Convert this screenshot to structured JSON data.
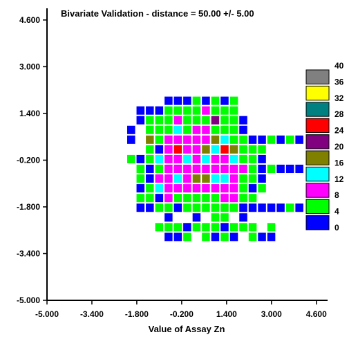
{
  "chart_data": {
    "type": "heatmap",
    "title": "Bivariate Validation - distance = 50.00 +/- 5.00",
    "xlabel": "Value of Assay Zn",
    "ylabel": "",
    "xlim": [
      -5.0,
      5.0
    ],
    "ylim": [
      -5.0,
      5.0
    ],
    "x_ticks": [
      "-5.000",
      "-3.400",
      "-1.800",
      "-0.200",
      "1.400",
      "3.000",
      "4.600"
    ],
    "y_ticks": [
      "4.600",
      "3.000",
      "1.400",
      "-0.200",
      "-1.800",
      "-3.400",
      "-5.000"
    ],
    "grid": false,
    "cell_size": 0.333,
    "x_start": -2.5,
    "y_start": 2.0,
    "legend": {
      "placement": "right",
      "labels": [
        "40",
        "36",
        "32",
        "28",
        "24",
        "20",
        "16",
        "12",
        "8",
        "4",
        "0"
      ],
      "swatches": [
        {
          "bin": "36-40",
          "color": "#808080"
        },
        {
          "bin": "32-36",
          "color": "#ffff00"
        },
        {
          "bin": "28-32",
          "color": "#008080"
        },
        {
          "bin": "24-28",
          "color": "#ff0000"
        },
        {
          "bin": "20-24",
          "color": "#800080"
        },
        {
          "bin": "16-20",
          "color": "#808000"
        },
        {
          "bin": "12-16",
          "color": "#00ffff"
        },
        {
          "bin": "8-12",
          "color": "#ff00ff"
        },
        {
          "bin": "4-8",
          "color": "#00ff00"
        },
        {
          "bin": "0-4",
          "color": "#0000ff"
        }
      ]
    },
    "grid_rows": [
      ".....BBBGBGBG....",
      "..BBBGGGGMGGG....",
      "..BGGGMGGGPGGB...",
      ".B.GGGCGMMGGGB...",
      ".B.OGMMMMMOCGGBBGBGB",
      "...GBMRMMOCROGGG...",
      ".GBGCMMCMCMMCGGB...",
      "..GBGMMMMMMMMMGBGBBB",
      "..GBMMCMOOCCMGGB...",
      "..BGCMMMMMMMMGBG...",
      "..GGBMGGGGGMMGG....",
      "..BBGGBGGGGGGBBBBBGB",
      ".....B..B.GG.B.....",
      "....GGGBGGGBGGG.G..",
      ".....BBG.GBGB.GBB..",
      "..................."
    ],
    "color_key": {
      "B": "#0000ff",
      "G": "#00ff00",
      "M": "#ff00ff",
      "C": "#00ffff",
      "O": "#808000",
      "P": "#800080",
      "R": "#ff0000",
      "Y": "#ffff00",
      "T": "#008080",
      "A": "#808080"
    }
  }
}
